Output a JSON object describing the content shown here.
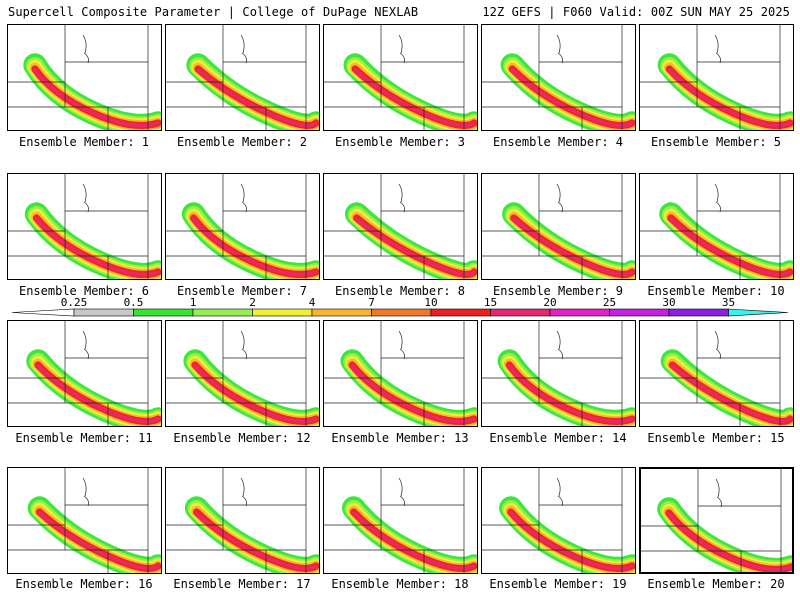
{
  "header": {
    "title": "Supercell Composite Parameter | College of DuPage NEXLAB",
    "run_info": "12Z GEFS | F060 Valid: 00Z SUN MAY 25 2025"
  },
  "colorbar": {
    "labels": [
      "0.25",
      "0.5",
      "1",
      "2",
      "4",
      "7",
      "10",
      "15",
      "20",
      "25",
      "30",
      "35"
    ],
    "colors": [
      "#c8c8c8",
      "#32e632",
      "#96f050",
      "#f0f032",
      "#fab432",
      "#f07828",
      "#f01e1e",
      "#e6286e",
      "#e61ec8",
      "#c81ee6",
      "#8c1ee6",
      "#b464e6",
      "#3cf0f0"
    ]
  },
  "members": [
    {
      "label": "Ensemble Member: 1"
    },
    {
      "label": "Ensemble Member: 2"
    },
    {
      "label": "Ensemble Member: 3"
    },
    {
      "label": "Ensemble Member: 4"
    },
    {
      "label": "Ensemble Member: 5"
    },
    {
      "label": "Ensemble Member: 6"
    },
    {
      "label": "Ensemble Member: 7"
    },
    {
      "label": "Ensemble Member: 8"
    },
    {
      "label": "Ensemble Member: 9"
    },
    {
      "label": "Ensemble Member: 10"
    },
    {
      "label": "Ensemble Member: 11"
    },
    {
      "label": "Ensemble Member: 12"
    },
    {
      "label": "Ensemble Member: 13"
    },
    {
      "label": "Ensemble Member: 14"
    },
    {
      "label": "Ensemble Member: 15"
    },
    {
      "label": "Ensemble Member: 16"
    },
    {
      "label": "Ensemble Member: 17"
    },
    {
      "label": "Ensemble Member: 18"
    },
    {
      "label": "Ensemble Member: 19"
    },
    {
      "label": "Ensemble Member: 20"
    }
  ]
}
